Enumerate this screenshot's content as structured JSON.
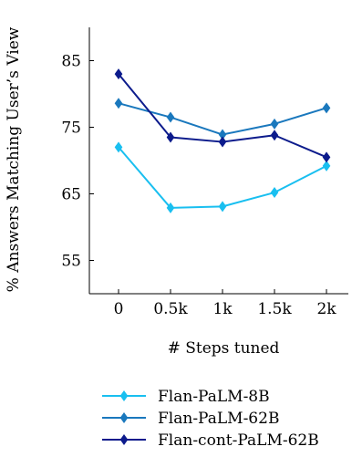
{
  "chart_data": {
    "type": "line",
    "title": "",
    "xlabel": "# Steps tuned",
    "ylabel": "% Answers Matching User’s View",
    "categories": [
      "0",
      "0.5k",
      "1k",
      "1.5k",
      "2k"
    ],
    "y_ticks": [
      55,
      65,
      75,
      85
    ],
    "ylim": [
      50,
      90
    ],
    "grid": false,
    "legend_position": "bottom",
    "series": [
      {
        "name": "Flan-PaLM-8B",
        "color": "#19bff0",
        "values": [
          72.0,
          62.9,
          63.1,
          65.2,
          69.2
        ]
      },
      {
        "name": "Flan-PaLM-62B",
        "color": "#1a78bd",
        "values": [
          78.6,
          76.5,
          73.9,
          75.5,
          77.9
        ]
      },
      {
        "name": "Flan-cont-PaLM-62B",
        "color": "#0c1b8c",
        "values": [
          83.0,
          73.5,
          72.8,
          73.8,
          70.5
        ]
      }
    ]
  }
}
